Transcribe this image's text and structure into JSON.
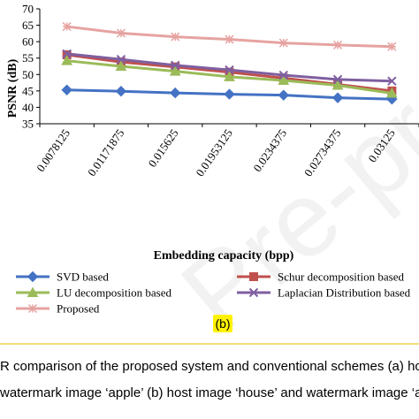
{
  "chart_data": {
    "type": "line",
    "title": "",
    "xlabel": "Embedding capacity (bpp)",
    "ylabel": "PSNR (dB)",
    "ylim": [
      35,
      70
    ],
    "yticks": [
      "35",
      "40",
      "45",
      "50",
      "55",
      "60",
      "65",
      "70"
    ],
    "categories": [
      "0.0078125",
      "0.01171875",
      "0.015625",
      "0.01953125",
      "0.0234375",
      "0.02734375",
      "0.03125"
    ],
    "grid": false,
    "legend_position": "bottom",
    "series": [
      {
        "name": "SVD based",
        "color": "#4472C4",
        "marker": "diamond",
        "values": [
          45.3,
          44.9,
          44.4,
          44.0,
          43.7,
          42.9,
          42.5
        ]
      },
      {
        "name": "Schur decomposition based",
        "color": "#C0504D",
        "marker": "square",
        "values": [
          56.0,
          53.8,
          52.3,
          50.7,
          48.9,
          47.0,
          45.0
        ]
      },
      {
        "name": "LU decomposition based",
        "color": "#9BBB59",
        "marker": "triangle",
        "values": [
          54.2,
          52.5,
          51.0,
          49.3,
          48.2,
          46.7,
          44.3
        ]
      },
      {
        "name": "Laplacian Distribution based",
        "color": "#7F5FA0",
        "marker": "x",
        "values": [
          56.3,
          54.6,
          52.8,
          51.4,
          49.8,
          48.5,
          48.0
        ]
      },
      {
        "name": "Proposed",
        "color": "#E6A3A0",
        "marker": "star",
        "values": [
          64.6,
          62.6,
          61.5,
          60.7,
          59.6,
          59.0,
          58.5
        ]
      }
    ]
  },
  "panel_label": "(b)",
  "caption": {
    "line1": "R comparison of the proposed system and conventional schemes (a) hos",
    "line2": "watermark image ‘apple’ (b) host image ‘house’ and watermark image ‘a"
  },
  "watermark": "Pre-proof"
}
